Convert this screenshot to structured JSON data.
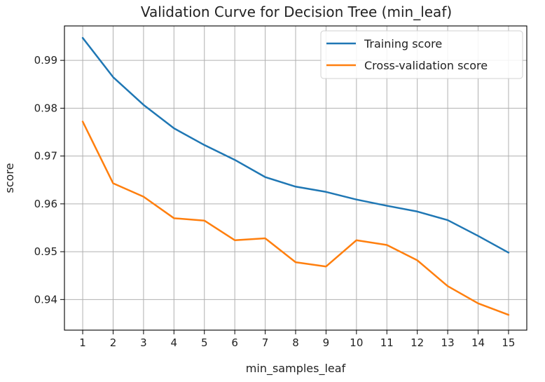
{
  "chart_data": {
    "type": "line",
    "title": "Validation Curve for Decision Tree (min_leaf)",
    "xlabel": "min_samples_leaf",
    "ylabel": "score",
    "x": [
      1,
      2,
      3,
      4,
      5,
      6,
      7,
      8,
      9,
      10,
      11,
      12,
      13,
      14,
      15
    ],
    "xticks": [
      "1",
      "2",
      "3",
      "4",
      "5",
      "6",
      "7",
      "8",
      "9",
      "10",
      "11",
      "12",
      "13",
      "14",
      "15"
    ],
    "yticks": [
      "0.94",
      "0.95",
      "0.96",
      "0.97",
      "0.98",
      "0.99"
    ],
    "ytick_values": [
      0.94,
      0.95,
      0.96,
      0.97,
      0.98,
      0.99
    ],
    "xlim": [
      0.4,
      15.6
    ],
    "ylim": [
      0.9336,
      0.9972
    ],
    "grid": true,
    "legend_position": "top-right",
    "series": [
      {
        "name": "Training score",
        "color": "#1f77b4",
        "values": [
          0.9947,
          0.9865,
          0.9807,
          0.9758,
          0.9723,
          0.9692,
          0.9656,
          0.9636,
          0.9625,
          0.9609,
          0.9596,
          0.9584,
          0.9566,
          0.9533,
          0.9498
        ]
      },
      {
        "name": "Cross-validation score",
        "color": "#ff7f0e",
        "values": [
          0.9772,
          0.9643,
          0.9615,
          0.957,
          0.9565,
          0.9524,
          0.9528,
          0.9478,
          0.9469,
          0.9524,
          0.9514,
          0.9482,
          0.9428,
          0.9392,
          0.9368
        ]
      }
    ]
  }
}
